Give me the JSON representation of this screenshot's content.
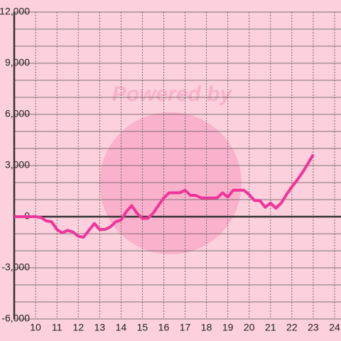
{
  "chart_data": {
    "type": "line",
    "watermark": "Powered by",
    "x": [
      9,
      9.25,
      9.5,
      9.75,
      10,
      10.25,
      10.5,
      10.75,
      11,
      11.25,
      11.5,
      11.75,
      12,
      12.25,
      12.5,
      12.75,
      13,
      13.25,
      13.5,
      13.75,
      14,
      14.25,
      14.5,
      14.75,
      15,
      15.25,
      15.5,
      15.75,
      16,
      16.25,
      16.5,
      16.75,
      17,
      17.25,
      17.5,
      17.75,
      18,
      18.25,
      18.5,
      18.75,
      19,
      19.25,
      19.5,
      19.75,
      20,
      20.25,
      20.5,
      20.75,
      21,
      21.25,
      21.5,
      21.75,
      22,
      22.25,
      22.5,
      22.75,
      23
    ],
    "values": [
      0,
      0,
      0,
      0,
      0,
      -50,
      -250,
      -300,
      -750,
      -950,
      -800,
      -900,
      -1150,
      -1200,
      -800,
      -400,
      -750,
      -750,
      -600,
      -300,
      -200,
      300,
      650,
      200,
      -100,
      -100,
      200,
      650,
      1100,
      1400,
      1400,
      1400,
      1550,
      1250,
      1250,
      1100,
      1100,
      1100,
      1100,
      1400,
      1150,
      1550,
      1550,
      1550,
      1300,
      950,
      950,
      550,
      800,
      500,
      800,
      1300,
      1750,
      2150,
      2600,
      3100,
      3650
    ],
    "color": "#f0359a",
    "xlim": [
      9,
      24.3
    ],
    "xticks": [
      10,
      11,
      12,
      13,
      14,
      15,
      16,
      17,
      18,
      19,
      20,
      21,
      22,
      23,
      24
    ],
    "ylim": [
      -6000,
      12000
    ],
    "yticks": [
      {
        "value": -6000,
        "label": "-6,000"
      },
      {
        "value": -3000,
        "label": "-3,000"
      },
      0,
      {
        "value": 3000,
        "label": "3,000"
      },
      {
        "value": 6000,
        "label": "6,000"
      },
      {
        "value": 9000,
        "label": "9,000"
      },
      {
        "value": 12000,
        "label": "12,000"
      }
    ],
    "grid": true
  }
}
